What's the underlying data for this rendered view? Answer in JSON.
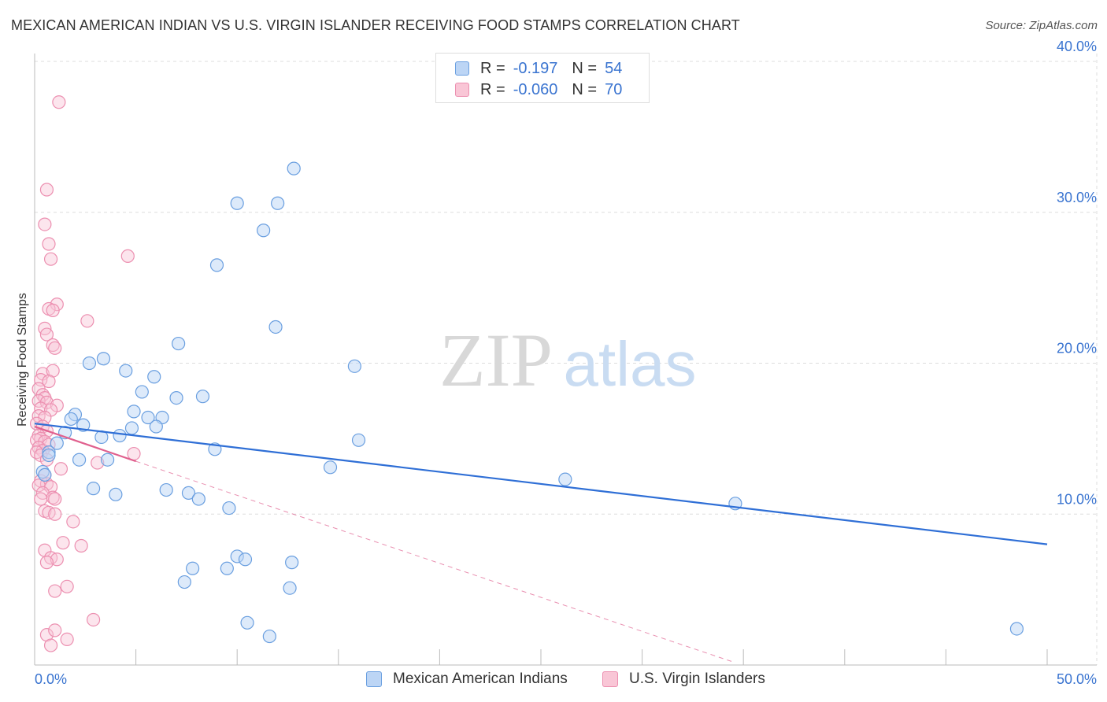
{
  "title": "MEXICAN AMERICAN INDIAN VS U.S. VIRGIN ISLANDER RECEIVING FOOD STAMPS CORRELATION CHART",
  "source": "Source: ZipAtlas.com",
  "watermark": {
    "zip": "ZIP",
    "atlas": "atlas"
  },
  "legend_top": {
    "rows": [
      {
        "r_label": "R =",
        "r_value": "-0.197",
        "n_label": "N =",
        "n_value": "54"
      },
      {
        "r_label": "R =",
        "r_value": "-0.060",
        "n_label": "N =",
        "n_value": "70"
      }
    ]
  },
  "colors": {
    "blue_fill": "#bcd5f5",
    "blue_stroke": "#6a9fe0",
    "blue_line": "#2f6fd6",
    "pink_fill": "#f9c6d6",
    "pink_stroke": "#ec8fb0",
    "pink_line": "#e0608e",
    "grid": "#dddddd",
    "axis_text": "#3a74d0"
  },
  "chart_data": {
    "type": "scatter",
    "title": "MEXICAN AMERICAN INDIAN VS U.S. VIRGIN ISLANDER RECEIVING FOOD STAMPS CORRELATION CHART",
    "xlabel": "",
    "ylabel": "Receiving Food Stamps",
    "xlim": [
      0,
      50
    ],
    "ylim": [
      0,
      40
    ],
    "x_tick_labels": [
      "0.0%",
      "50.0%"
    ],
    "y_ticks": [
      10,
      20,
      30,
      40
    ],
    "y_tick_labels": [
      "10.0%",
      "20.0%",
      "30.0%",
      "40.0%"
    ],
    "grid": true,
    "legend_position": "bottom",
    "series": [
      {
        "name": "Mexican American Indians",
        "color": "#6a9fe0",
        "r": -0.197,
        "n": 54,
        "trend": {
          "x": [
            0,
            50
          ],
          "y": [
            16.0,
            8.0
          ],
          "style": "solid"
        },
        "points": [
          [
            12.8,
            32.9
          ],
          [
            10.0,
            30.6
          ],
          [
            12.0,
            30.6
          ],
          [
            11.3,
            28.8
          ],
          [
            9.0,
            26.5
          ],
          [
            11.9,
            22.4
          ],
          [
            7.1,
            21.3
          ],
          [
            3.4,
            20.3
          ],
          [
            15.8,
            19.8
          ],
          [
            2.7,
            20.0
          ],
          [
            4.5,
            19.5
          ],
          [
            5.9,
            19.1
          ],
          [
            5.3,
            18.1
          ],
          [
            8.3,
            17.8
          ],
          [
            7.0,
            17.7
          ],
          [
            2.0,
            16.6
          ],
          [
            4.9,
            16.8
          ],
          [
            5.6,
            16.4
          ],
          [
            6.3,
            16.4
          ],
          [
            1.8,
            16.3
          ],
          [
            2.4,
            15.9
          ],
          [
            4.8,
            15.7
          ],
          [
            6.0,
            15.8
          ],
          [
            1.5,
            15.4
          ],
          [
            3.3,
            15.1
          ],
          [
            4.2,
            15.2
          ],
          [
            16.0,
            14.9
          ],
          [
            1.1,
            14.7
          ],
          [
            8.9,
            14.3
          ],
          [
            0.7,
            14.1
          ],
          [
            2.2,
            13.6
          ],
          [
            3.6,
            13.6
          ],
          [
            0.7,
            13.9
          ],
          [
            14.6,
            13.1
          ],
          [
            0.4,
            12.8
          ],
          [
            0.5,
            12.6
          ],
          [
            26.2,
            12.3
          ],
          [
            2.9,
            11.7
          ],
          [
            6.5,
            11.6
          ],
          [
            7.6,
            11.4
          ],
          [
            4.0,
            11.3
          ],
          [
            8.1,
            11.0
          ],
          [
            34.6,
            10.7
          ],
          [
            9.6,
            10.4
          ],
          [
            10.0,
            7.2
          ],
          [
            10.4,
            7.0
          ],
          [
            12.7,
            6.8
          ],
          [
            7.8,
            6.4
          ],
          [
            9.5,
            6.4
          ],
          [
            7.4,
            5.5
          ],
          [
            12.6,
            5.1
          ],
          [
            10.5,
            2.8
          ],
          [
            11.6,
            1.9
          ],
          [
            48.5,
            2.4
          ]
        ]
      },
      {
        "name": "U.S. Virgin Islanders",
        "color": "#ec8fb0",
        "r": -0.06,
        "n": 70,
        "trend": {
          "x": [
            0,
            5.0
          ],
          "y": [
            15.8,
            13.5
          ],
          "style": "solid"
        },
        "trend_extended": {
          "x": [
            5.0,
            34.5
          ],
          "y": [
            13.5,
            0.2
          ],
          "style": "dashed"
        },
        "points": [
          [
            1.2,
            37.3
          ],
          [
            0.6,
            31.5
          ],
          [
            0.5,
            29.2
          ],
          [
            0.7,
            27.9
          ],
          [
            0.8,
            26.9
          ],
          [
            4.6,
            27.1
          ],
          [
            1.1,
            23.9
          ],
          [
            0.7,
            23.6
          ],
          [
            0.9,
            23.5
          ],
          [
            2.6,
            22.8
          ],
          [
            0.5,
            22.3
          ],
          [
            0.6,
            21.9
          ],
          [
            0.9,
            21.2
          ],
          [
            1.0,
            21.0
          ],
          [
            0.4,
            19.3
          ],
          [
            0.9,
            19.5
          ],
          [
            0.3,
            18.9
          ],
          [
            0.7,
            18.8
          ],
          [
            0.2,
            18.3
          ],
          [
            0.4,
            17.9
          ],
          [
            0.5,
            17.7
          ],
          [
            0.2,
            17.5
          ],
          [
            0.6,
            17.4
          ],
          [
            1.1,
            17.2
          ],
          [
            0.3,
            17.0
          ],
          [
            0.8,
            16.9
          ],
          [
            0.2,
            16.5
          ],
          [
            0.5,
            16.4
          ],
          [
            0.1,
            16.0
          ],
          [
            0.4,
            15.8
          ],
          [
            0.6,
            15.5
          ],
          [
            0.2,
            15.2
          ],
          [
            0.3,
            15.0
          ],
          [
            0.1,
            14.9
          ],
          [
            0.5,
            14.8
          ],
          [
            0.7,
            14.6
          ],
          [
            0.2,
            14.4
          ],
          [
            0.4,
            14.2
          ],
          [
            0.1,
            14.1
          ],
          [
            0.3,
            13.9
          ],
          [
            4.9,
            14.0
          ],
          [
            0.6,
            13.6
          ],
          [
            3.1,
            13.4
          ],
          [
            1.3,
            13.0
          ],
          [
            0.5,
            12.6
          ],
          [
            0.3,
            12.2
          ],
          [
            0.6,
            12.0
          ],
          [
            0.2,
            11.9
          ],
          [
            0.8,
            11.8
          ],
          [
            0.4,
            11.4
          ],
          [
            0.9,
            11.1
          ],
          [
            1.0,
            11.0
          ],
          [
            0.3,
            11.0
          ],
          [
            0.5,
            10.2
          ],
          [
            0.7,
            10.1
          ],
          [
            1.0,
            10.0
          ],
          [
            1.9,
            9.5
          ],
          [
            1.4,
            8.1
          ],
          [
            2.3,
            7.9
          ],
          [
            0.5,
            7.6
          ],
          [
            0.8,
            7.1
          ],
          [
            1.1,
            7.0
          ],
          [
            0.6,
            6.8
          ],
          [
            1.6,
            5.2
          ],
          [
            1.0,
            4.9
          ],
          [
            2.9,
            3.0
          ],
          [
            0.6,
            2.0
          ],
          [
            1.6,
            1.7
          ],
          [
            0.8,
            1.3
          ],
          [
            1.0,
            2.3
          ]
        ]
      }
    ]
  }
}
